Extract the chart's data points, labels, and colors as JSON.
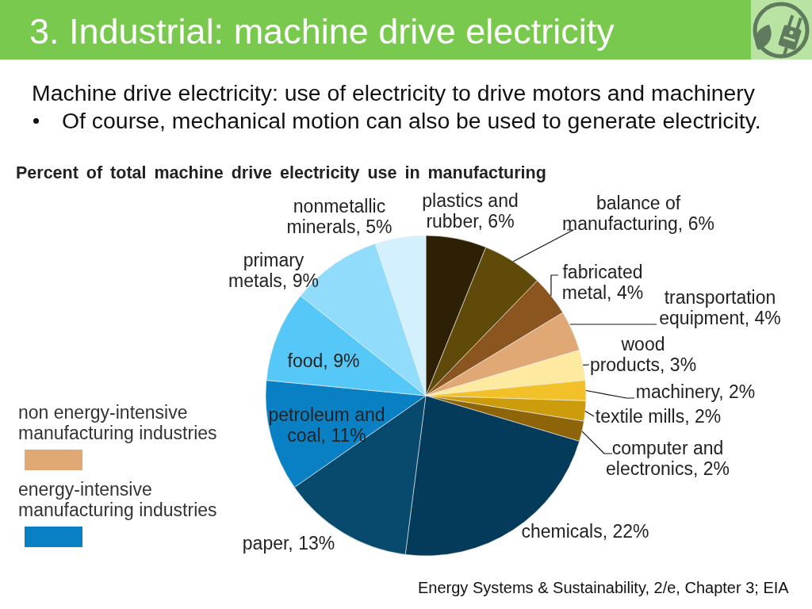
{
  "chart_data": {
    "type": "pie",
    "title": "3. Industrial: machine drive electricity",
    "subtitle": "Percent of total machine drive electricity use in manufacturing",
    "categories": [
      "plastics and rubber",
      "balance of manufacturing",
      "fabricated metal",
      "transportation equipment",
      "wood products",
      "machinery",
      "textile mills",
      "computer and electronics",
      "chemicals",
      "paper",
      "petroleum and coal",
      "food",
      "primary metals",
      "nonmetallic minerals"
    ],
    "values": [
      6,
      6,
      4,
      4,
      3,
      2,
      2,
      2,
      22,
      13,
      11,
      9,
      9,
      5
    ],
    "colors": [
      "#2e2005",
      "#5f4a0a",
      "#8b5520",
      "#e0a874",
      "#fde9a0",
      "#f2c12a",
      "#cc9c0c",
      "#8d6508",
      "#043a5a",
      "#08496e",
      "#0a80c4",
      "#55c8f8",
      "#92dcfb",
      "#d2f0fd"
    ],
    "value_labels": [
      "6%",
      "6%",
      "4%",
      "4%",
      "3%",
      "2%",
      "2%",
      "2%",
      "22%",
      "13%",
      "11%",
      "9%",
      "9%",
      "5%"
    ],
    "annotations": [
      "Machine drive electricity: use of electricity to drive motors and machinery",
      "Of course, mechanical motion can also be used to generate electricity.",
      "non energy-intensive manufacturing industries",
      "energy-intensive manufacturing industries",
      "Energy Systems & Sustainability, 2/e, Chapter 3; EIA"
    ]
  }
}
